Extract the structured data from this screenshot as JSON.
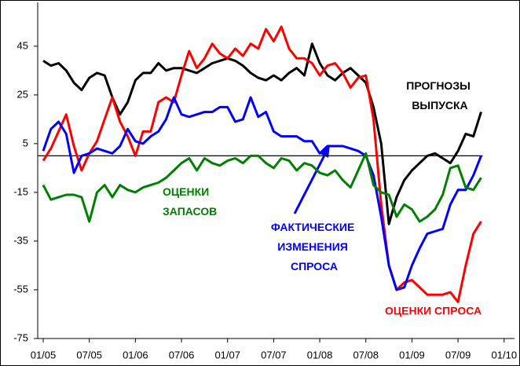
{
  "chart_data": {
    "type": "line",
    "categories": [
      "01/05",
      null,
      null,
      null,
      null,
      null,
      "07/05",
      null,
      null,
      null,
      null,
      null,
      "01/06",
      null,
      null,
      null,
      null,
      null,
      "07/06",
      null,
      null,
      null,
      null,
      null,
      "01/07",
      null,
      null,
      null,
      null,
      null,
      "07/07",
      null,
      null,
      null,
      null,
      null,
      "01/08",
      null,
      null,
      null,
      null,
      null,
      "07/08",
      null,
      null,
      null,
      null,
      null,
      "01/09",
      null,
      null,
      null,
      null,
      null,
      "07/09",
      null,
      null,
      null,
      null,
      null,
      "01/10"
    ],
    "series": [
      {
        "name": "ПРОГНОЗЫ ВЫПУСКА",
        "color": "#000000",
        "values": [
          39,
          37,
          38,
          35,
          30,
          27,
          32,
          34,
          33,
          24,
          17,
          22,
          31,
          34,
          34,
          38,
          35,
          36,
          36,
          35,
          34,
          36,
          38,
          39,
          40,
          39,
          37,
          34,
          32,
          31,
          33,
          31,
          34,
          36,
          33,
          46,
          38,
          33,
          31,
          34,
          36,
          33,
          30,
          20,
          5,
          -28,
          -17,
          -10,
          -6,
          -3,
          0,
          1,
          -1,
          -3,
          2,
          9,
          8,
          18,
          null,
          null,
          null
        ]
      },
      {
        "name": "ОЦЕНКИ СПРОСА",
        "color": "#ff0000",
        "values": [
          -2,
          3,
          10,
          17,
          4,
          -6,
          1,
          6,
          15,
          24,
          14,
          8,
          0,
          10,
          10,
          22,
          24,
          22,
          33,
          43,
          36,
          40,
          46,
          42,
          40,
          44,
          41,
          46,
          44,
          52,
          47,
          53,
          44,
          40,
          40,
          38,
          33,
          37,
          38,
          34,
          28,
          32,
          33,
          15,
          -20,
          -45,
          -55,
          -52,
          -51,
          -54,
          -57,
          -57,
          -57,
          -56,
          -60,
          -45,
          -32,
          -27,
          null,
          null,
          null
        ]
      },
      {
        "name": "ФАКТИЧЕСКИЕ ИЗМЕНЕНИЯ СПРОСА",
        "color": "#0000ff",
        "values": [
          2,
          11,
          14,
          9,
          -7,
          0,
          1,
          3,
          2,
          1,
          4,
          11,
          6,
          5,
          8,
          10,
          15,
          24,
          17,
          16,
          17,
          18,
          18,
          20,
          20,
          14,
          15,
          24,
          16,
          18,
          10,
          8,
          8,
          8,
          6,
          6,
          1,
          4,
          4,
          4,
          3,
          2,
          0,
          -8,
          -25,
          -45,
          -55,
          -54,
          -45,
          -38,
          -32,
          -31,
          -30,
          -20,
          -14,
          -14,
          -8,
          0,
          null,
          null,
          null
        ]
      },
      {
        "name": "ОЦЕНКИ ЗАПАСОВ",
        "color": "#008000",
        "values": [
          -12,
          -18,
          -17,
          -16,
          -16,
          -17,
          -27,
          -15,
          -12,
          -17,
          -12,
          -14,
          -15,
          -13,
          -12,
          -11,
          -9,
          -6,
          -3,
          -1,
          -6,
          -1,
          -3,
          -4,
          -2,
          -1,
          -3,
          0,
          0,
          -3,
          -5,
          -1,
          -2,
          -6,
          -3,
          -4,
          -7,
          -8,
          -6,
          -10,
          -13,
          -6,
          1,
          -12,
          -15,
          -16,
          -25,
          -20,
          -22,
          -27,
          -25,
          -22,
          -16,
          -5,
          -4,
          -13,
          -14,
          -9,
          null,
          null,
          null
        ]
      }
    ],
    "ylim": [
      -75,
      63
    ],
    "yticks": [
      45,
      25,
      5,
      -15,
      -35,
      -55,
      -75
    ],
    "reference_line": 0
  }
}
